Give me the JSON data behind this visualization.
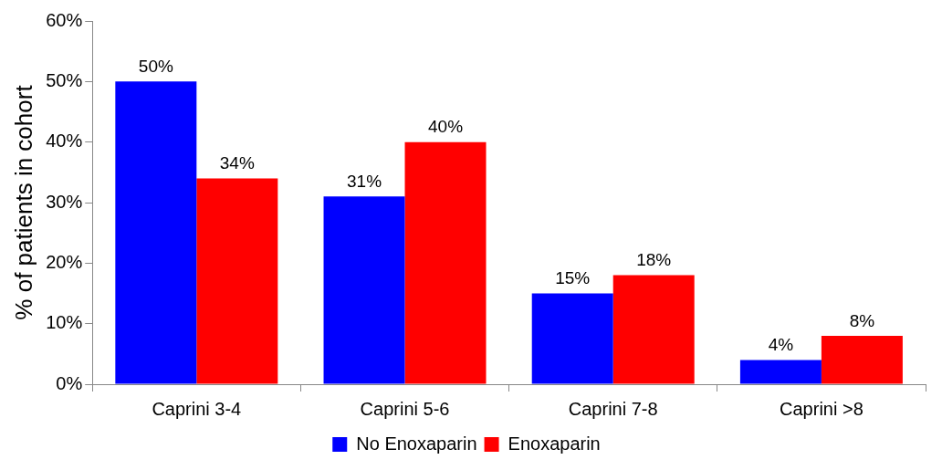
{
  "chart_data": {
    "type": "bar",
    "ylabel": "% of patients in cohort",
    "categories": [
      "Caprini 3-4",
      "Caprini 5-6",
      "Caprini 7-8",
      "Caprini >8"
    ],
    "series": [
      {
        "name": "No Enoxaparin",
        "color": "#0000ff",
        "values": [
          50,
          31,
          15,
          4
        ],
        "value_labels": [
          "50%",
          "31%",
          "15%",
          "4%"
        ]
      },
      {
        "name": "Enoxaparin",
        "color": "#ff0000",
        "values": [
          34,
          40,
          18,
          8
        ],
        "value_labels": [
          "34%",
          "40%",
          "18%",
          "8%"
        ]
      }
    ],
    "ylim": [
      0,
      60
    ],
    "yticks": [
      {
        "value": 0,
        "label": "0%"
      },
      {
        "value": 10,
        "label": "10%"
      },
      {
        "value": 20,
        "label": "20%"
      },
      {
        "value": 30,
        "label": "30%"
      },
      {
        "value": 40,
        "label": "40%"
      },
      {
        "value": 50,
        "label": "50%"
      },
      {
        "value": 60,
        "label": "60%"
      }
    ],
    "legend": "bottom",
    "grid": false
  }
}
